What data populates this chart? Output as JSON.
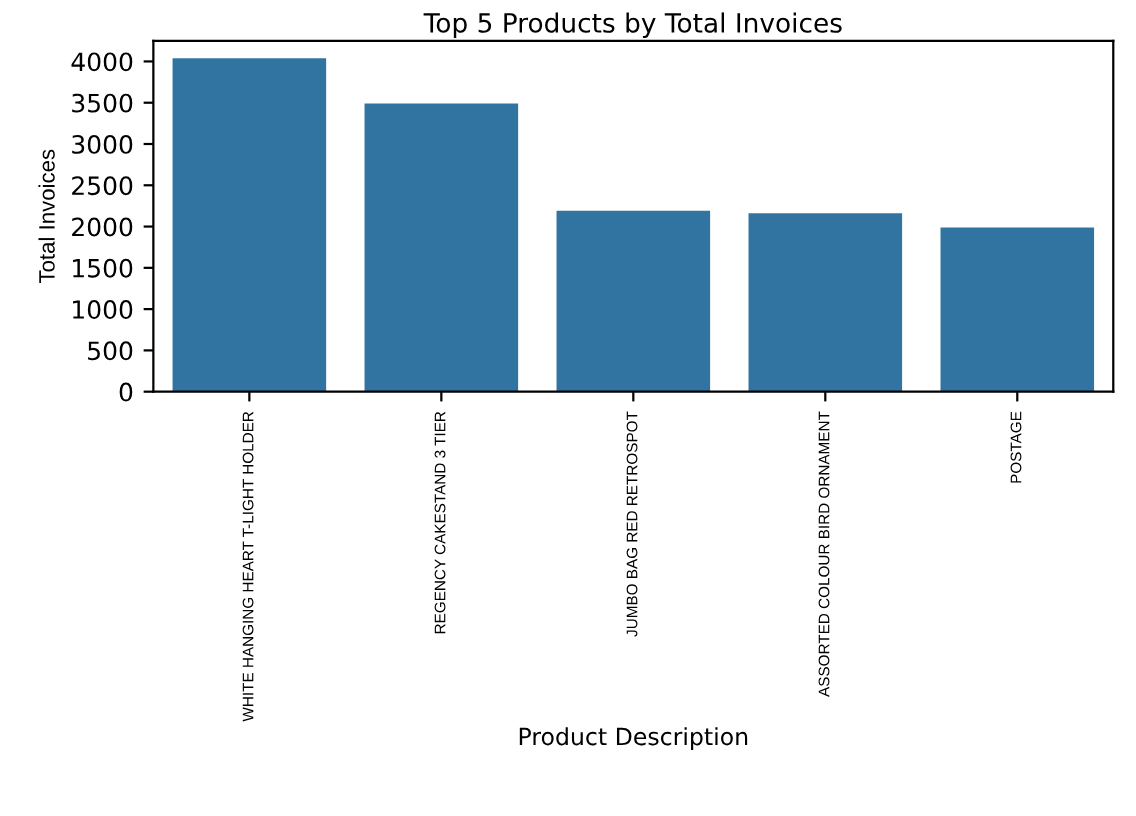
{
  "chart_data": {
    "type": "bar",
    "title": "Top 5 Products by Total Invoices",
    "xlabel": "Product Description",
    "ylabel": "Total Invoices",
    "categories": [
      "WHITE HANGING HEART T-LIGHT HOLDER",
      "REGENCY CAKESTAND 3 TIER",
      "JUMBO BAG RED RETROSPOT",
      "ASSORTED COLOUR BIRD ORNAMENT",
      "POSTAGE"
    ],
    "values": [
      4040,
      3490,
      2190,
      2160,
      1990
    ],
    "color": "#3274a1",
    "ylim": [
      0,
      4250
    ],
    "yticks": [
      0,
      500,
      1000,
      1500,
      2000,
      2500,
      3000,
      3500,
      4000
    ],
    "grid": false,
    "legend": false
  }
}
